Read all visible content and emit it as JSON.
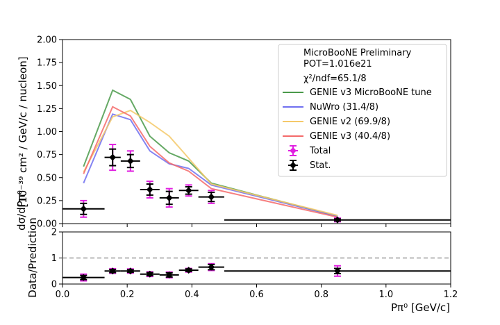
{
  "chart_data": [
    {
      "type": "line+errorbar",
      "panel": "main",
      "ylabel": "[10⁻³⁹ cm² / GeV/c / nucleon]",
      "ylabel_prefix": "dσ/dPπ⁰",
      "ylim": [
        0,
        2
      ],
      "xlim": [
        0,
        1.2
      ],
      "yticks": [
        "0.00",
        "0.25",
        "0.50",
        "0.75",
        "1.00",
        "1.25",
        "1.50",
        "1.75",
        "2.00"
      ],
      "legend": {
        "header_lines": [
          "MicroBooNE Preliminary",
          "POT=1.016e21",
          "χ²/ndf=65.1/8"
        ],
        "placement": "top-right"
      },
      "x_bin_edges": [
        0.0,
        0.13,
        0.18,
        0.24,
        0.3,
        0.36,
        0.42,
        0.5,
        1.2
      ],
      "points": {
        "x": [
          0.065,
          0.155,
          0.21,
          0.27,
          0.33,
          0.39,
          0.46,
          0.85
        ],
        "y": [
          0.16,
          0.72,
          0.68,
          0.37,
          0.28,
          0.36,
          0.29,
          0.04
        ],
        "stat_err": [
          0.06,
          0.09,
          0.07,
          0.06,
          0.07,
          0.04,
          0.05,
          0.01
        ],
        "total_err": [
          0.09,
          0.14,
          0.11,
          0.09,
          0.1,
          0.06,
          0.07,
          0.02
        ]
      },
      "series": [
        {
          "name": "GENIE v3 MicroBooNE tune",
          "color": "#4a9a4a",
          "x": [
            0.065,
            0.155,
            0.21,
            0.27,
            0.33,
            0.39,
            0.46,
            0.85
          ],
          "values": [
            0.62,
            1.45,
            1.35,
            0.95,
            0.77,
            0.68,
            0.44,
            0.08
          ]
        },
        {
          "name": "NuWro (31.4/8)",
          "color": "#6f6ff0",
          "x": [
            0.065,
            0.155,
            0.21,
            0.27,
            0.33,
            0.39,
            0.46,
            0.85
          ],
          "values": [
            0.44,
            1.19,
            1.13,
            0.79,
            0.65,
            0.6,
            0.42,
            0.08
          ]
        },
        {
          "name": "GENIE v2 (69.9/8)",
          "color": "#f5c96a",
          "x": [
            0.065,
            0.155,
            0.21,
            0.27,
            0.33,
            0.39,
            0.46,
            0.85
          ],
          "values": [
            0.56,
            1.16,
            1.23,
            1.1,
            0.95,
            0.71,
            0.43,
            0.09
          ]
        },
        {
          "name": "GENIE v3 (40.4/8)",
          "color": "#f46a6a",
          "x": [
            0.065,
            0.155,
            0.21,
            0.27,
            0.33,
            0.39,
            0.46,
            0.85
          ],
          "values": [
            0.54,
            1.27,
            1.17,
            0.84,
            0.66,
            0.57,
            0.38,
            0.07
          ]
        }
      ],
      "markers": [
        {
          "name": "Total",
          "color": "#e020e0"
        },
        {
          "name": "Stat.",
          "color": "#000000"
        }
      ]
    },
    {
      "type": "errorbar",
      "panel": "ratio",
      "ylabel": "Data/Prediction",
      "xlabel": "Pπ⁰ [GeV/c]",
      "ylim": [
        0,
        2
      ],
      "xlim": [
        0,
        1.2
      ],
      "yticks": [
        "0",
        "1",
        "2"
      ],
      "xticks": [
        "0.0",
        "0.2",
        "0.4",
        "0.6",
        "0.8",
        "1.0",
        "1.2"
      ],
      "reference_line": 1,
      "points": {
        "x": [
          0.065,
          0.155,
          0.21,
          0.27,
          0.33,
          0.39,
          0.46,
          0.85
        ],
        "y": [
          0.25,
          0.5,
          0.5,
          0.38,
          0.35,
          0.53,
          0.65,
          0.5
        ],
        "stat_err": [
          0.08,
          0.06,
          0.05,
          0.06,
          0.08,
          0.05,
          0.1,
          0.1
        ],
        "total_err": [
          0.13,
          0.09,
          0.08,
          0.09,
          0.11,
          0.07,
          0.13,
          0.2
        ]
      }
    }
  ]
}
